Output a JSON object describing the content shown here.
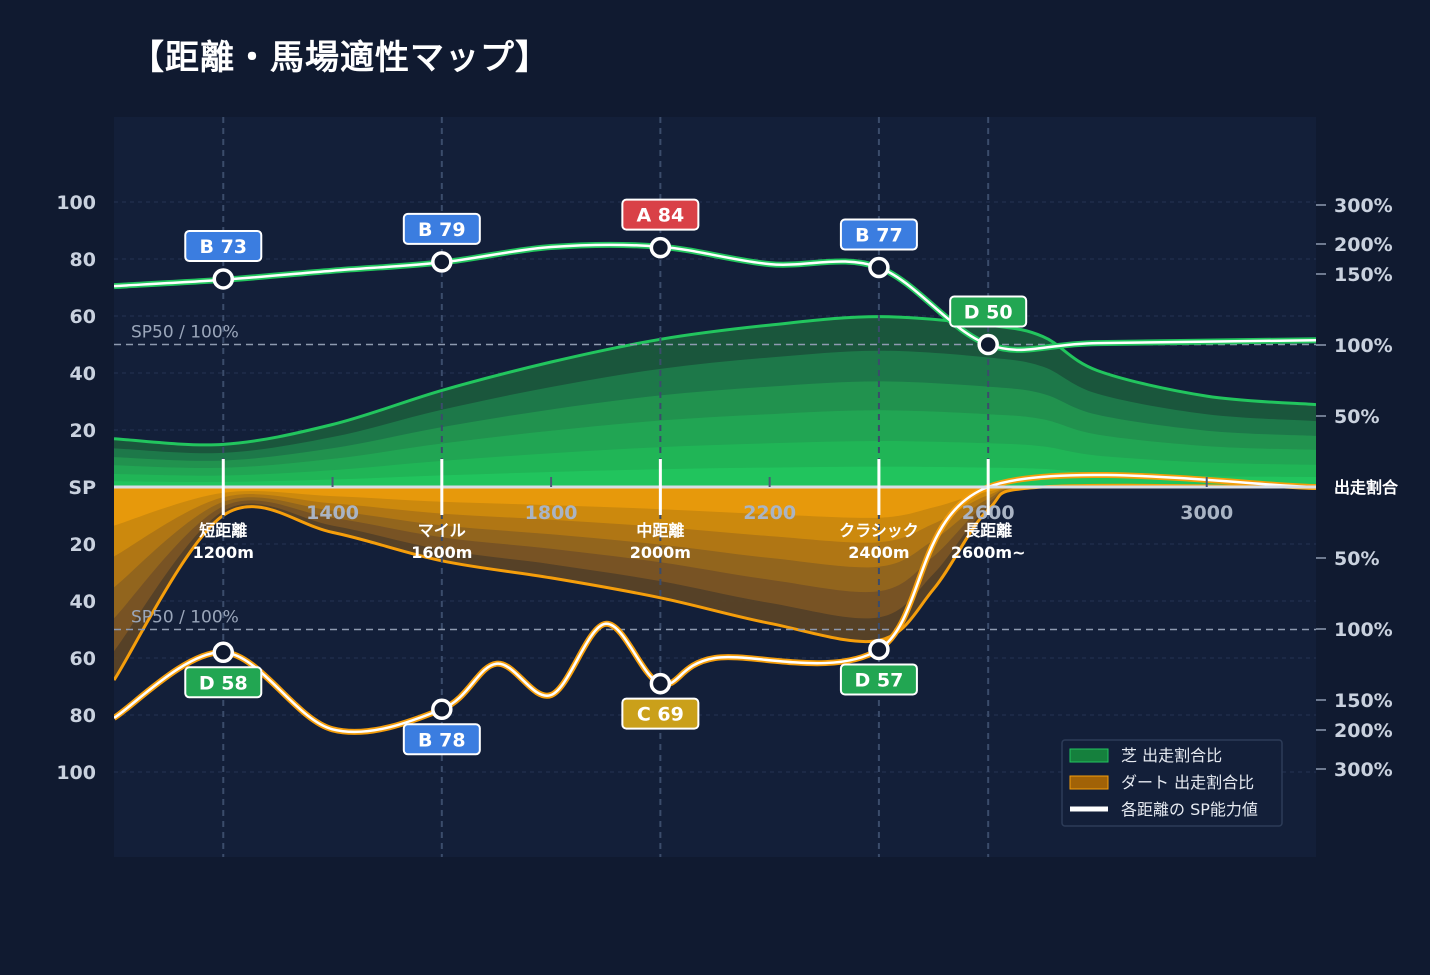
{
  "title": "【距離・馬場適性マップ】",
  "chart_data": {
    "type": "area",
    "x_ticks": [
      1400,
      1800,
      2200,
      2600,
      3000
    ],
    "x_range": [
      1000,
      3200
    ],
    "left_axis": {
      "center_label": "SP",
      "ticks": [
        100,
        80,
        60,
        40,
        20
      ],
      "range": [
        0,
        100
      ]
    },
    "right_axis": {
      "center_label": "出走割合",
      "ticks": [
        "300%",
        "200%",
        "150%",
        "100%",
        "50%"
      ]
    },
    "reference": {
      "label": "SP50 / 100%",
      "sp": 50
    },
    "categories": [
      {
        "name": "短距離",
        "dist": "1200m",
        "x": 1200
      },
      {
        "name": "マイル",
        "dist": "1600m",
        "x": 1600
      },
      {
        "name": "中距離",
        "dist": "2000m",
        "x": 2000
      },
      {
        "name": "クラシック",
        "dist": "2400m",
        "x": 2400
      },
      {
        "name": "長距離",
        "dist": "2600m~",
        "x": 2600
      }
    ],
    "series": [
      {
        "name": "芝 出走割合比",
        "color": "#22c55e",
        "ratio_pct": [
          [
            1000,
            34
          ],
          [
            1200,
            30
          ],
          [
            1400,
            44
          ],
          [
            1600,
            68
          ],
          [
            1800,
            88
          ],
          [
            2000,
            104
          ],
          [
            2200,
            114
          ],
          [
            2400,
            120
          ],
          [
            2600,
            114
          ],
          [
            2700,
            106
          ],
          [
            2800,
            82
          ],
          [
            3000,
            64
          ],
          [
            3200,
            58
          ]
        ]
      },
      {
        "name": "ダート 出走割合比",
        "color": "#f59e0b",
        "ratio_pct": [
          [
            1000,
            136
          ],
          [
            1200,
            20
          ],
          [
            1400,
            32
          ],
          [
            1600,
            52
          ],
          [
            1800,
            64
          ],
          [
            2000,
            78
          ],
          [
            2200,
            96
          ],
          [
            2400,
            108
          ],
          [
            2500,
            72
          ],
          [
            2600,
            16
          ],
          [
            2700,
            0
          ],
          [
            3200,
            0
          ]
        ]
      },
      {
        "name": "各距離の SP能力値",
        "color": "#ffffff",
        "turf_sp": [
          [
            1000,
            70.5
          ],
          [
            1200,
            72.7
          ],
          [
            1400,
            75.9
          ],
          [
            1600,
            78.8
          ],
          [
            1800,
            84.2
          ],
          [
            2000,
            84.3
          ],
          [
            2200,
            78.2
          ],
          [
            2400,
            77
          ],
          [
            2600,
            50
          ],
          [
            2800,
            50.5
          ],
          [
            3200,
            51.5
          ]
        ],
        "dirt_sp": [
          [
            1000,
            81
          ],
          [
            1200,
            58
          ],
          [
            1400,
            85
          ],
          [
            1600,
            78
          ],
          [
            1700,
            62
          ],
          [
            1800,
            73
          ],
          [
            1900,
            48
          ],
          [
            2000,
            69
          ],
          [
            2100,
            60
          ],
          [
            2400,
            57
          ],
          [
            2600,
            0
          ],
          [
            3200,
            0
          ]
        ]
      }
    ],
    "grades": {
      "turf": [
        {
          "x": 1200,
          "grade": "B",
          "sp": 73,
          "label": "B 73",
          "color": "#3b7de0"
        },
        {
          "x": 1600,
          "grade": "B",
          "sp": 79,
          "label": "B 79",
          "color": "#3b7de0"
        },
        {
          "x": 2000,
          "grade": "A",
          "sp": 84,
          "label": "A 84",
          "color": "#d94147"
        },
        {
          "x": 2400,
          "grade": "B",
          "sp": 77,
          "label": "B 77",
          "color": "#3b7de0"
        },
        {
          "x": 2600,
          "grade": "D",
          "sp": 50,
          "label": "D 50",
          "color": "#22a652"
        }
      ],
      "dirt": [
        {
          "x": 1200,
          "grade": "D",
          "sp": 58,
          "label": "D 58",
          "color": "#22a652"
        },
        {
          "x": 1600,
          "grade": "B",
          "sp": 78,
          "label": "B 78",
          "color": "#3b7de0"
        },
        {
          "x": 2000,
          "grade": "C",
          "sp": 69,
          "label": "C 69",
          "color": "#caa01a"
        },
        {
          "x": 2400,
          "grade": "D",
          "sp": 57,
          "label": "D 57",
          "color": "#22a652"
        }
      ]
    },
    "legend": {
      "position": "bottom-right",
      "items": [
        {
          "label": "芝 出走割合比",
          "color": "#15803d"
        },
        {
          "label": "ダート 出走割合比",
          "color": "#a16207"
        },
        {
          "label": "各距離の SP能力値",
          "color": "#ffffff"
        }
      ]
    },
    "grid": true
  }
}
